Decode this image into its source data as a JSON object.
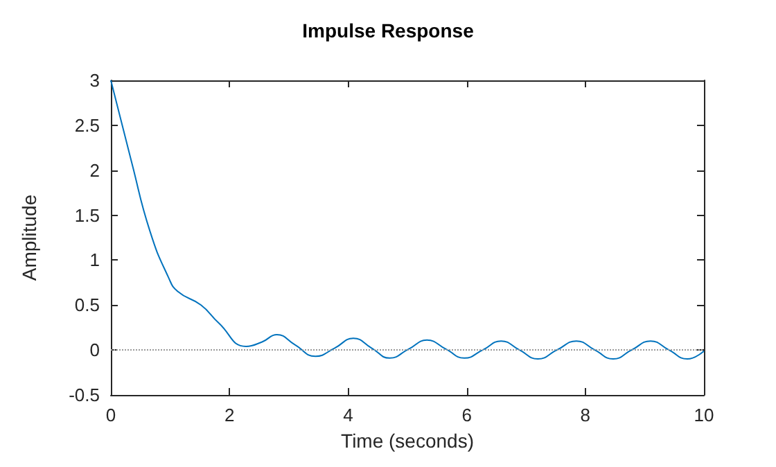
{
  "chart_data": {
    "type": "line",
    "title": "Impulse Response",
    "xlabel": "Time (seconds)",
    "ylabel": "Amplitude",
    "x": [
      0,
      0.35,
      0.66,
      0.97,
      1.13,
      1.52,
      1.82,
      2.28,
      2.55,
      2.8,
      3.1,
      3.45,
      3.77,
      4.09,
      4.4,
      4.7,
      5.02,
      5.33,
      5.65,
      5.96,
      6.27,
      6.58,
      6.89,
      7.2,
      7.52,
      7.85,
      8.16,
      8.47,
      8.78,
      9.1,
      9.41,
      9.72,
      10
    ],
    "series": [
      {
        "color": "#0072bd",
        "values": [
          3,
          2.09,
          1.32,
          0.81,
          0.65,
          0.5,
          0.3,
          0.04,
          0.09,
          0.17,
          0.06,
          -0.07,
          0.02,
          0.13,
          0.02,
          -0.09,
          0.01,
          0.11,
          0.01,
          -0.09,
          0.0,
          0.1,
          0.0,
          -0.1,
          0.0,
          0.1,
          0.0,
          -0.1,
          0.0,
          0.1,
          0.0,
          -0.1,
          -0.01
        ]
      }
    ],
    "xlim": [
      0,
      10
    ],
    "xticks": [
      0,
      2,
      4,
      6,
      8,
      10
    ],
    "ylim": [
      -0.5,
      3
    ],
    "yticks": [
      -0.5,
      0,
      0.5,
      1,
      1.5,
      2,
      2.5,
      3
    ],
    "ref_lines": [
      {
        "axis": "y",
        "value": 0,
        "color": "#999999",
        "line_style": "dotted"
      }
    ],
    "grid": false,
    "marker": "none",
    "line_style": "solid"
  }
}
